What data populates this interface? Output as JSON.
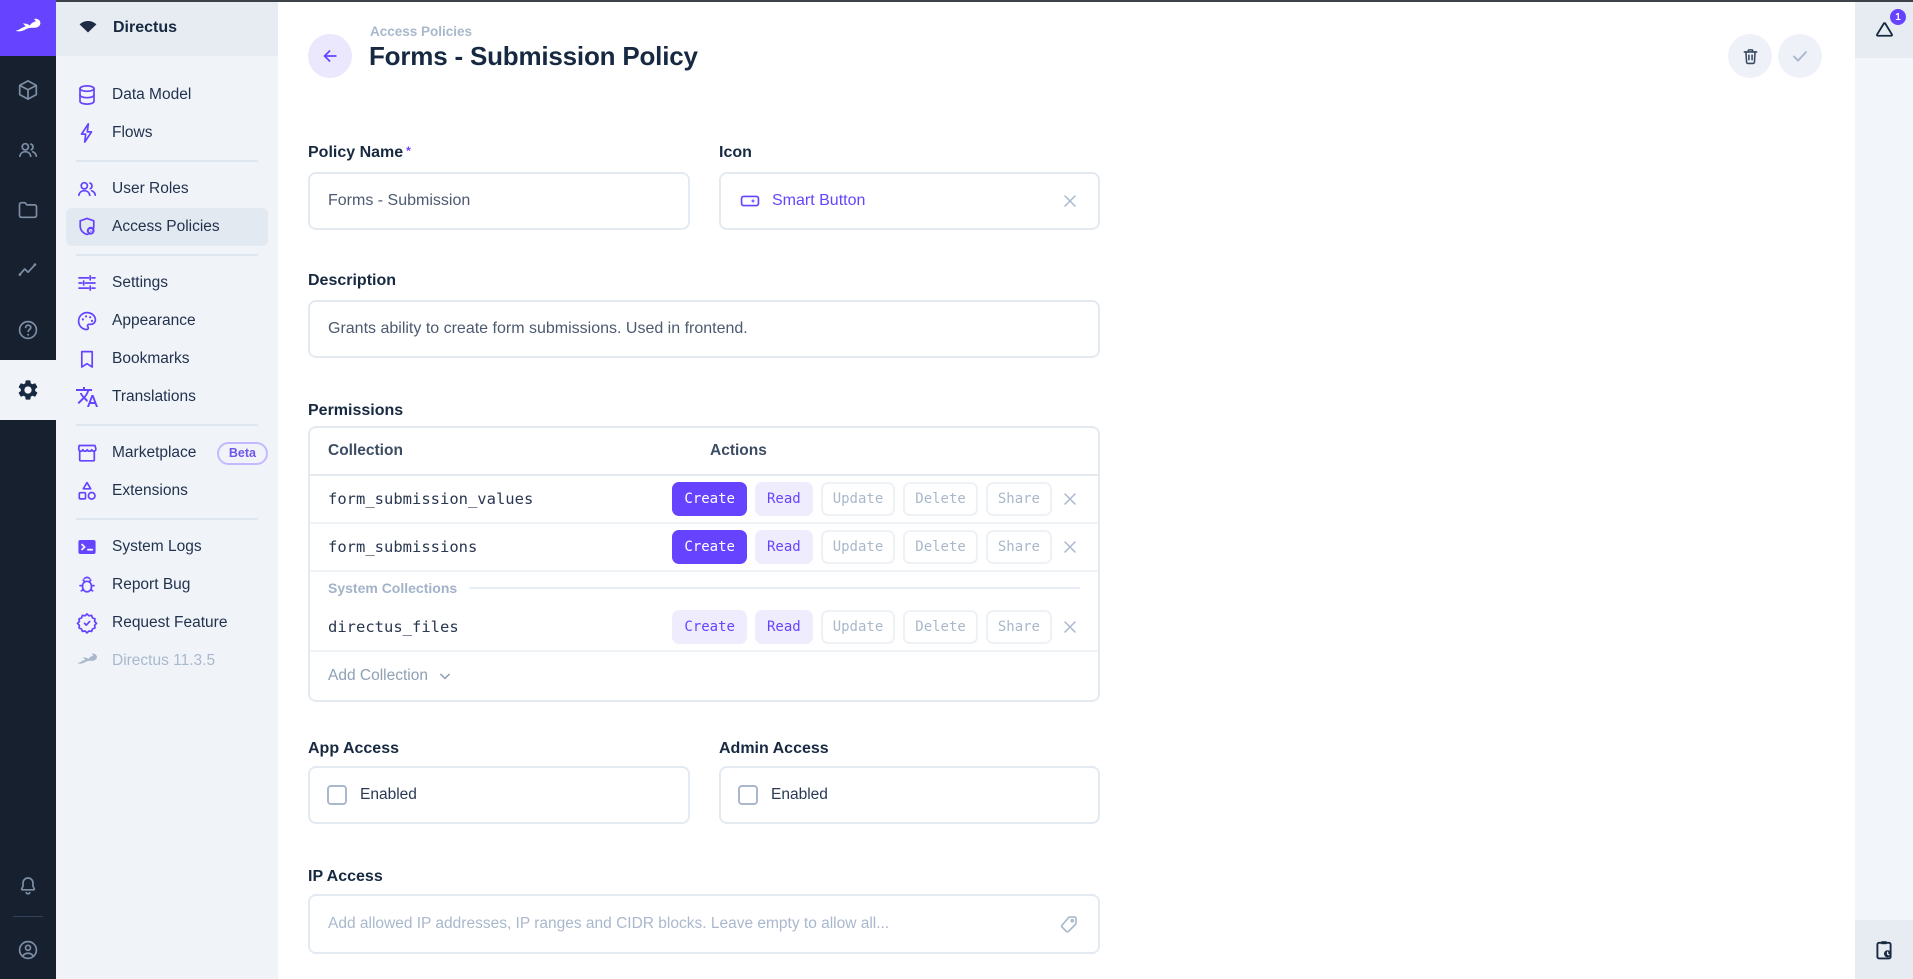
{
  "app": {
    "project_name": "Directus",
    "version_label": "Directus 11.3.5"
  },
  "colors": {
    "accent": "#6644ff",
    "accent_light": "#efecfd",
    "navy": "#172940",
    "muted": "#a9b8cc",
    "border": "#e4eaf1",
    "sidebar_bg": "#f0f4f9",
    "module_bar_bg": "#16202e"
  },
  "module_bar": {
    "modules": [
      {
        "name": "content",
        "icon": "box-icon",
        "active": false
      },
      {
        "name": "users",
        "icon": "users-icon",
        "active": false
      },
      {
        "name": "files",
        "icon": "folder-icon",
        "active": false
      },
      {
        "name": "insights",
        "icon": "insights-icon",
        "active": false
      },
      {
        "name": "help",
        "icon": "help-icon",
        "active": false
      },
      {
        "name": "settings",
        "icon": "gear-icon",
        "active": true
      }
    ],
    "bottom": [
      {
        "name": "notifications",
        "icon": "bell-icon"
      },
      {
        "name": "account",
        "icon": "person-circle-icon"
      }
    ]
  },
  "nav": {
    "sections": [
      {
        "items": [
          {
            "label": "Data Model",
            "icon": "database-icon"
          },
          {
            "label": "Flows",
            "icon": "bolt-icon"
          }
        ]
      },
      {
        "items": [
          {
            "label": "User Roles",
            "icon": "user-roles-icon"
          },
          {
            "label": "Access Policies",
            "icon": "shield-policy-icon",
            "active": true
          }
        ]
      },
      {
        "items": [
          {
            "label": "Settings",
            "icon": "tune-icon"
          },
          {
            "label": "Appearance",
            "icon": "palette-icon"
          },
          {
            "label": "Bookmarks",
            "icon": "bookmark-icon"
          },
          {
            "label": "Translations",
            "icon": "translate-icon"
          }
        ]
      },
      {
        "items": [
          {
            "label": "Marketplace",
            "icon": "storefront-icon",
            "badge": "Beta"
          },
          {
            "label": "Extensions",
            "icon": "category-icon"
          }
        ]
      },
      {
        "items": [
          {
            "label": "System Logs",
            "icon": "terminal-icon"
          },
          {
            "label": "Report Bug",
            "icon": "bug-icon"
          },
          {
            "label": "Request Feature",
            "icon": "feature-icon"
          }
        ]
      }
    ],
    "version": {
      "label": "Directus 11.3.5",
      "icon": "rabbit-icon"
    }
  },
  "header": {
    "breadcrumb": "Access Policies",
    "title": "Forms - Submission Policy",
    "notification_count": "1"
  },
  "form": {
    "policy_name": {
      "label": "Policy Name",
      "required_mark": "*",
      "value": "Forms - Submission"
    },
    "icon_field": {
      "label": "Icon",
      "value": "Smart Button"
    },
    "description": {
      "label": "Description",
      "value": "Grants ability to create form submissions. Used in frontend."
    },
    "permissions": {
      "label": "Permissions",
      "columns": {
        "collection": "Collection",
        "actions": "Actions"
      },
      "rows": [
        {
          "collection": "form_submission_values",
          "actions": [
            {
              "label": "Create",
              "level": "full"
            },
            {
              "label": "Read",
              "level": "partial"
            },
            {
              "label": "Update",
              "level": "none"
            },
            {
              "label": "Delete",
              "level": "none"
            },
            {
              "label": "Share",
              "level": "none"
            }
          ]
        },
        {
          "collection": "form_submissions",
          "actions": [
            {
              "label": "Create",
              "level": "full"
            },
            {
              "label": "Read",
              "level": "partial"
            },
            {
              "label": "Update",
              "level": "none"
            },
            {
              "label": "Delete",
              "level": "none"
            },
            {
              "label": "Share",
              "level": "none"
            }
          ]
        },
        {
          "collection": "directus_files",
          "group": "System Collections",
          "actions": [
            {
              "label": "Create",
              "level": "partial"
            },
            {
              "label": "Read",
              "level": "partial"
            },
            {
              "label": "Update",
              "level": "none"
            },
            {
              "label": "Delete",
              "level": "none"
            },
            {
              "label": "Share",
              "level": "none"
            }
          ]
        }
      ],
      "add_collection_label": "Add Collection"
    },
    "app_access": {
      "label": "App Access",
      "checkbox_label": "Enabled",
      "checked": false
    },
    "admin_access": {
      "label": "Admin Access",
      "checkbox_label": "Enabled",
      "checked": false
    },
    "ip_access": {
      "label": "IP Access",
      "placeholder": "Add allowed IP addresses, IP ranges and CIDR blocks. Leave empty to allow all..."
    }
  }
}
